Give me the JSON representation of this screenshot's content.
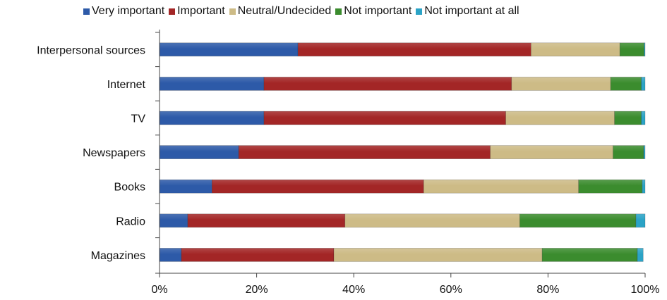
{
  "chart_data": {
    "type": "bar",
    "orientation": "horizontal",
    "stacked": "percent",
    "title": "",
    "xlabel": "",
    "ylabel": "",
    "xlim": [
      0,
      100
    ],
    "x_ticks": [
      "0%",
      "20%",
      "40%",
      "60%",
      "80%",
      "100%"
    ],
    "grid": false,
    "legend_position": "top",
    "categories": [
      "Interpersonal sources",
      "Internet",
      "TV",
      "Newspapers",
      "Books",
      "Radio",
      "Magazines"
    ],
    "series": [
      {
        "name": "Very important",
        "color": "#2d5aa8",
        "values": [
          28.5,
          21.5,
          21.5,
          16.3,
          10.8,
          5.8,
          4.5
        ]
      },
      {
        "name": "Important",
        "color": "#a32626",
        "values": [
          48.0,
          51.0,
          49.8,
          51.8,
          43.6,
          32.4,
          31.4
        ]
      },
      {
        "name": "Neutral/Undecided",
        "color": "#cdbb86",
        "values": [
          18.3,
          20.4,
          22.4,
          25.3,
          31.9,
          36.0,
          42.9
        ]
      },
      {
        "name": "Not important",
        "color": "#3b8c2e",
        "values": [
          5.0,
          6.3,
          5.5,
          6.3,
          13.1,
          23.9,
          19.6
        ]
      },
      {
        "name": "Not important at all",
        "color": "#2ba3c6",
        "values": [
          0.2,
          0.8,
          0.8,
          0.3,
          0.6,
          1.9,
          1.2
        ]
      }
    ]
  }
}
